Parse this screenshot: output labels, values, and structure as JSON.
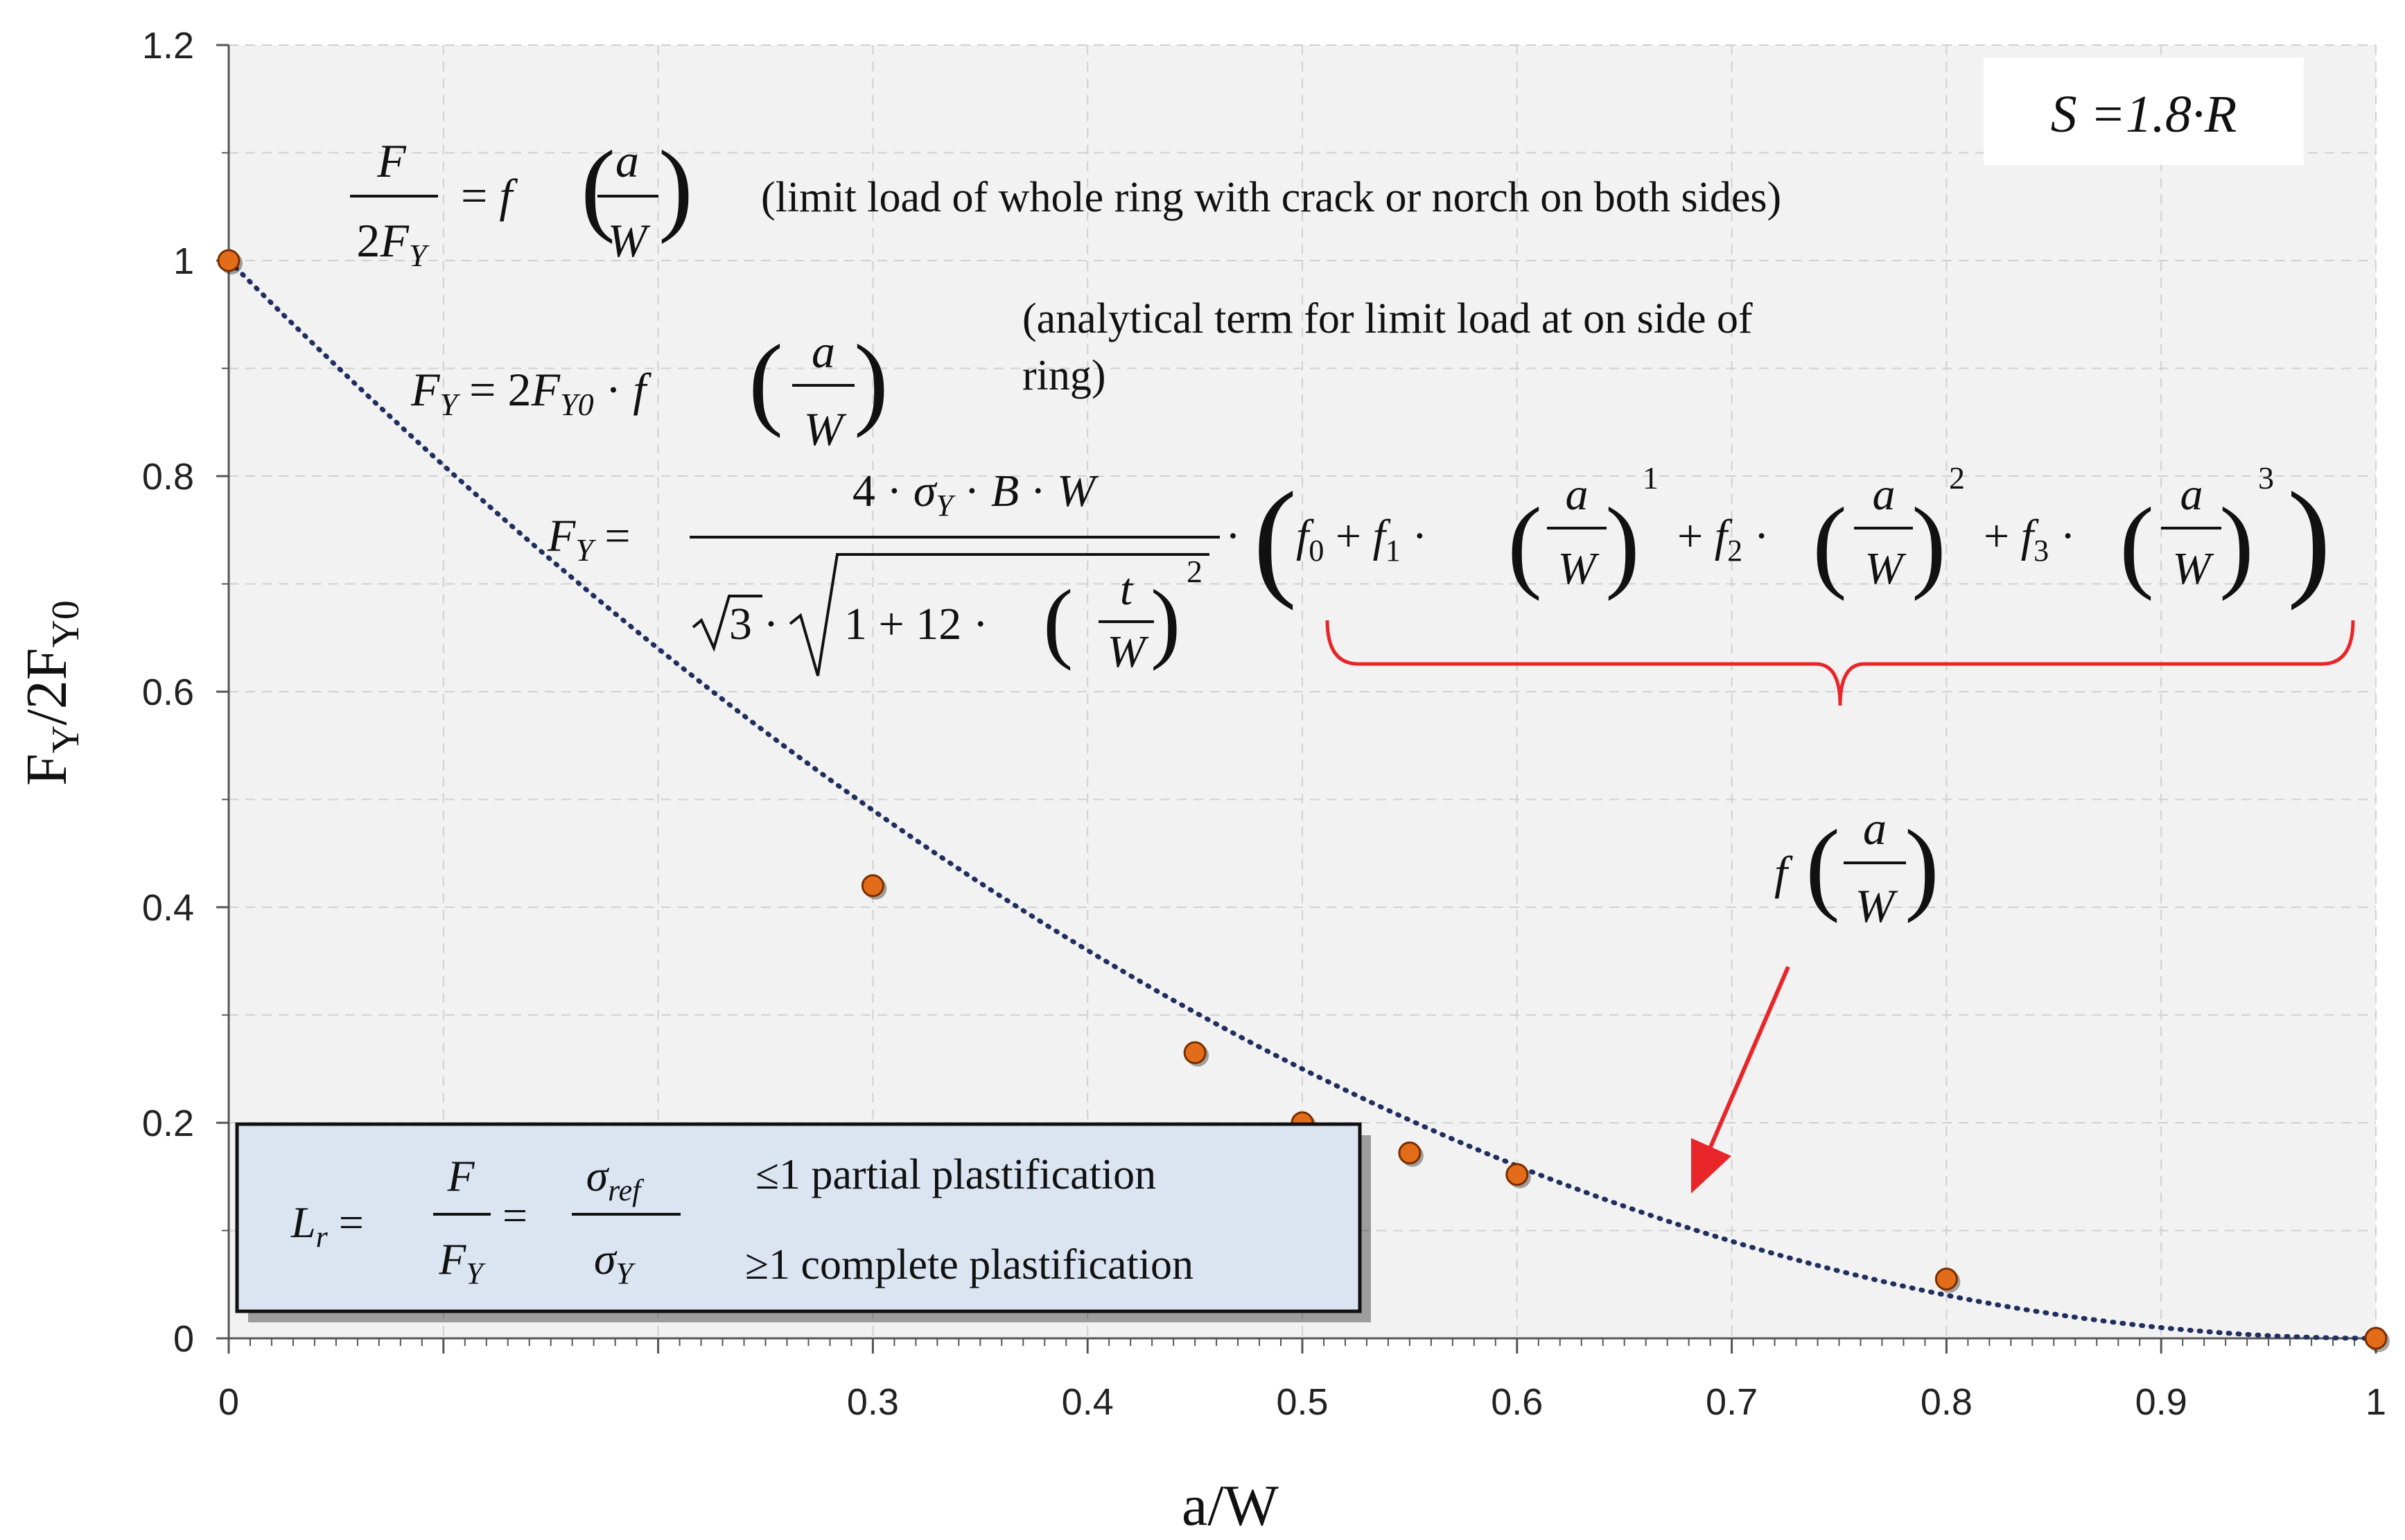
{
  "chart_data": {
    "type": "scatter",
    "xlabel": "a/W",
    "ylabel": "F_Y/2F_Y0",
    "xlim": [
      0,
      1
    ],
    "ylim": [
      0,
      1.2
    ],
    "x_ticks": [
      "0",
      "0.3",
      "0.4",
      "0.5",
      "0.6",
      "0.7",
      "0.8",
      "0.9",
      "1"
    ],
    "x_tick_values": [
      0,
      0.3,
      0.4,
      0.5,
      0.6,
      0.7,
      0.8,
      0.9,
      1
    ],
    "y_ticks": [
      "0",
      "0.2",
      "0.4",
      "0.6",
      "0.8",
      "1",
      "1.2"
    ],
    "y_tick_values": [
      0,
      0.2,
      0.4,
      0.6,
      0.8,
      1,
      1.2
    ],
    "grid": true,
    "series": [
      {
        "marker_color": "#e36c1a",
        "x": [
          0,
          0.3,
          0.45,
          0.5,
          0.55,
          0.6,
          0.8,
          1
        ],
        "y": [
          1.0,
          0.42,
          0.265,
          0.2,
          0.172,
          0.152,
          0.055,
          0.0
        ]
      }
    ],
    "trend_line": {
      "style": "dotted",
      "color": "#1f2f5f"
    },
    "annotations": {
      "parameter_box": "S =1.8·R",
      "note_whole_ring": "(limit load of whole ring with crack or norch on both sides)",
      "note_analytical_line1": "(analytical term for limit load at on side of",
      "note_analytical_line2": "ring)",
      "lr_partial": "≤1  partial plastification",
      "lr_complete": "≥1  complete  plastification"
    },
    "colors": {
      "plot_background": "#f2f2f2",
      "grid": "#d0d0d0",
      "brace": "#e8262a",
      "arrow": "#e8262a",
      "legend_box": "#dbe5f1"
    }
  }
}
